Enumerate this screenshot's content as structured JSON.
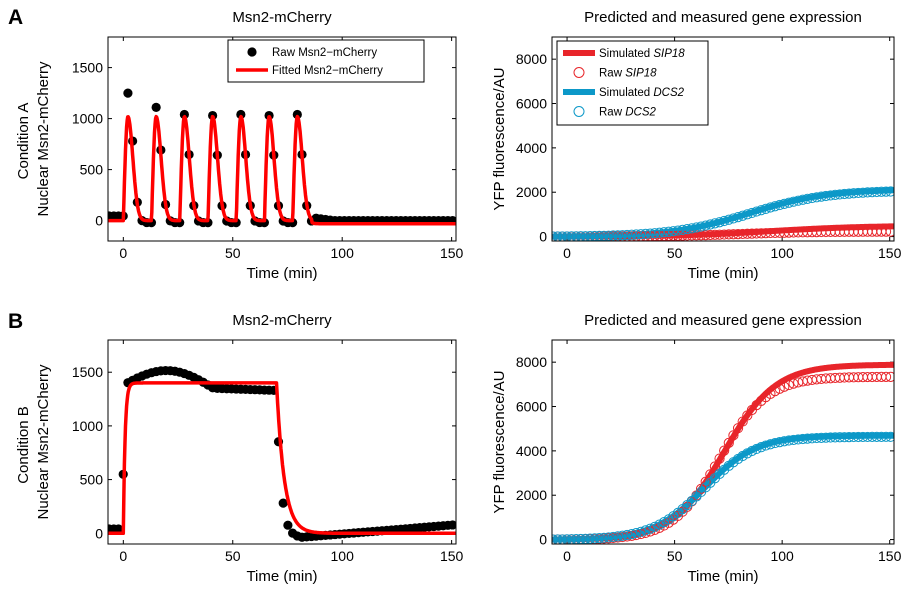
{
  "panels": [
    {
      "letter": "A",
      "condition": "Condition A"
    },
    {
      "letter": "B",
      "condition": "Condition B"
    }
  ],
  "colors": {
    "fit": "#ff0000",
    "raw_msn2": "#000000",
    "sip18": "#e8252a",
    "dcs2": "#0c98c8"
  },
  "legend_msn2": {
    "raw": "Raw Msn2−mCherry",
    "fitted": "Fitted Msn2−mCherry"
  },
  "legend_gene": {
    "items": [
      {
        "prefix": "Simulated ",
        "gene": "SIP18",
        "kind": "line",
        "series": "sip18"
      },
      {
        "prefix": "Raw ",
        "gene": "SIP18",
        "kind": "marker",
        "series": "sip18"
      },
      {
        "prefix": "Simulated ",
        "gene": "DCS2",
        "kind": "line",
        "series": "dcs2"
      },
      {
        "prefix": "Raw ",
        "gene": "DCS2",
        "kind": "marker",
        "series": "dcs2"
      }
    ]
  },
  "chart_data": [
    {
      "id": "A-msn2",
      "type": "line",
      "title": "Msn2-mCherry",
      "xlabel": "Time (min)",
      "ylabel": "Nuclear Msn2-mCherry",
      "xlim": [
        -7,
        152
      ],
      "ylim": [
        -200,
        1800
      ],
      "xticks": [
        0,
        50,
        100,
        150
      ],
      "yticks": [
        0,
        500,
        1000,
        1500
      ],
      "legend": "top-right",
      "series": [
        {
          "name": "Raw Msn2−mCherry",
          "kind": "dots",
          "pulses": {
            "count": 7,
            "period": 12.9,
            "peaks": [
              1270,
              1130,
              1060,
              1050,
              1060,
              1050,
              1060
            ],
            "end_time": 86
          }
        },
        {
          "name": "Fitted Msn2−mCherry",
          "kind": "line",
          "pulses": {
            "count": 7,
            "period": 12.9,
            "peak": 1020,
            "end_time": 86
          }
        }
      ]
    },
    {
      "id": "A-gene",
      "type": "line",
      "title": "Predicted and measured gene expression",
      "xlabel": "Time (min)",
      "ylabel": "YFP fluorescence/AU",
      "xlim": [
        -7,
        152
      ],
      "ylim": [
        -200,
        9000
      ],
      "xticks": [
        0,
        50,
        100,
        150
      ],
      "yticks": [
        0,
        2000,
        4000,
        6000,
        8000
      ],
      "legend": "top-left",
      "series": [
        {
          "name": "Simulated SIP18",
          "key": "sip18",
          "kind": "line",
          "plateau": 500,
          "midpoint": 95,
          "steepness": 22
        },
        {
          "name": "Raw SIP18",
          "key": "sip18",
          "kind": "marker",
          "plateau": 230,
          "midpoint": 80,
          "steepness": 18
        },
        {
          "name": "Simulated DCS2",
          "key": "dcs2",
          "kind": "line",
          "plateau": 2150,
          "midpoint": 85,
          "steepness": 18
        },
        {
          "name": "Raw DCS2",
          "key": "dcs2",
          "kind": "marker",
          "plateau": 2100,
          "midpoint": 85,
          "steepness": 18
        }
      ]
    },
    {
      "id": "B-msn2",
      "type": "line",
      "title": "Msn2-mCherry",
      "xlabel": "Time (min)",
      "ylabel": "Nuclear Msn2-mCherry",
      "xlim": [
        -7,
        152
      ],
      "ylim": [
        -100,
        1800
      ],
      "xticks": [
        0,
        50,
        100,
        150
      ],
      "yticks": [
        0,
        500,
        1000,
        1500
      ],
      "series": [
        {
          "name": "Raw Msn2−mCherry",
          "kind": "dots",
          "step": {
            "start": 0,
            "end": 70,
            "level_start": 1380,
            "level_peak": 1530,
            "level_end": 1330,
            "post_min": -40,
            "final": 80
          }
        },
        {
          "name": "Fitted Msn2−mCherry",
          "kind": "line",
          "step": {
            "start": 0,
            "end": 70,
            "level": 1400,
            "final": 0
          }
        }
      ]
    },
    {
      "id": "B-gene",
      "type": "line",
      "title": "Predicted and measured gene expression",
      "xlabel": "Time (min)",
      "ylabel": "YFP fluorescence/AU",
      "xlim": [
        -7,
        152
      ],
      "ylim": [
        -200,
        9000
      ],
      "xticks": [
        0,
        50,
        100,
        150
      ],
      "yticks": [
        0,
        2000,
        4000,
        6000,
        8000
      ],
      "series": [
        {
          "name": "Simulated SIP18",
          "key": "sip18",
          "kind": "line",
          "plateau": 7900,
          "midpoint": 73,
          "steepness": 12
        },
        {
          "name": "Raw SIP18",
          "key": "sip18",
          "kind": "marker",
          "plateau": 7350,
          "midpoint": 71,
          "steepness": 11
        },
        {
          "name": "Simulated DCS2",
          "key": "dcs2",
          "kind": "line",
          "plateau": 4700,
          "midpoint": 64,
          "steepness": 12
        },
        {
          "name": "Raw DCS2",
          "key": "dcs2",
          "kind": "marker",
          "plateau": 4650,
          "midpoint": 64,
          "steepness": 12
        }
      ]
    }
  ]
}
